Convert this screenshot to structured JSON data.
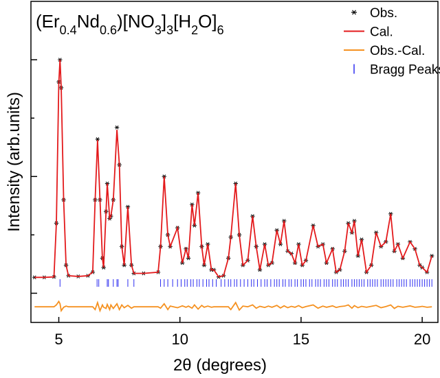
{
  "chart_data": {
    "type": "line",
    "title_segments": [
      {
        "text": "(Er"
      },
      {
        "text": "0.4",
        "sub": true
      },
      {
        "text": "Nd"
      },
      {
        "text": "0.6",
        "sub": true
      },
      {
        "text": ")[NO"
      },
      {
        "text": "3",
        "sub": true
      },
      {
        "text": "]"
      },
      {
        "text": "3",
        "sub": true
      },
      {
        "text": "[H"
      },
      {
        "text": "2",
        "sub": true
      },
      {
        "text": "O]"
      },
      {
        "text": "6",
        "sub": true
      }
    ],
    "x_label": "2θ (degrees)",
    "y_label": "Intensity (arb.units)",
    "xlim": [
      3.85,
      20.65
    ],
    "xticks": [
      5,
      10,
      15,
      20
    ],
    "ylim": [
      -0.125,
      1.25
    ],
    "yticks": [
      0,
      0.25,
      0.5,
      0.75,
      1
    ],
    "legend": "upper right",
    "x": [
      4.0,
      4.4,
      4.8,
      4.9,
      5.0,
      5.05,
      5.1,
      5.2,
      5.3,
      5.4,
      5.8,
      6.2,
      6.4,
      6.5,
      6.6,
      6.7,
      6.8,
      6.85,
      6.95,
      7.0,
      7.1,
      7.15,
      7.25,
      7.4,
      7.5,
      7.6,
      7.7,
      7.85,
      8.0,
      8.1,
      8.5,
      9.1,
      9.2,
      9.35,
      9.5,
      9.6,
      9.9,
      10.1,
      10.25,
      10.35,
      10.5,
      10.6,
      10.75,
      10.9,
      11.0,
      11.15,
      11.3,
      11.4,
      11.6,
      11.8,
      12.0,
      12.1,
      12.3,
      12.45,
      12.6,
      12.8,
      13.0,
      13.15,
      13.3,
      13.5,
      13.65,
      13.8,
      14.0,
      14.15,
      14.3,
      14.45,
      14.6,
      14.75,
      14.9,
      15.05,
      15.2,
      15.5,
      15.7,
      15.9,
      16.05,
      16.3,
      16.45,
      16.6,
      16.8,
      16.95,
      17.1,
      17.2,
      17.35,
      17.5,
      17.7,
      17.9,
      18.1,
      18.3,
      18.5,
      18.7,
      18.85,
      19.0,
      19.2,
      19.5,
      19.7,
      19.9,
      20.0,
      20.2,
      20.4
    ],
    "series": [
      {
        "name": "Obs.",
        "color": "#000000",
        "style": "marker",
        "values": [
          0.068,
          0.068,
          0.07,
          0.3,
          0.905,
          1.0,
          0.88,
          0.4,
          0.12,
          0.075,
          0.072,
          0.075,
          0.09,
          0.4,
          0.66,
          0.4,
          0.15,
          0.11,
          0.35,
          0.47,
          0.32,
          0.33,
          0.4,
          0.71,
          0.55,
          0.2,
          0.12,
          0.37,
          0.12,
          0.085,
          0.085,
          0.09,
          0.2,
          0.5,
          0.25,
          0.2,
          0.28,
          0.13,
          0.19,
          0.15,
          0.38,
          0.29,
          0.43,
          0.2,
          0.12,
          0.21,
          0.1,
          0.1,
          0.07,
          0.075,
          0.15,
          0.24,
          0.47,
          0.25,
          0.12,
          0.14,
          0.33,
          0.2,
          0.1,
          0.21,
          0.12,
          0.13,
          0.27,
          0.21,
          0.31,
          0.18,
          0.17,
          0.13,
          0.21,
          0.12,
          0.14,
          0.29,
          0.2,
          0.21,
          0.13,
          0.19,
          0.09,
          0.1,
          0.18,
          0.3,
          0.26,
          0.31,
          0.16,
          0.23,
          0.09,
          0.12,
          0.26,
          0.2,
          0.22,
          0.34,
          0.18,
          0.21,
          0.15,
          0.22,
          0.19,
          0.12,
          0.11,
          0.09,
          0.16
        ]
      },
      {
        "name": "Cal.",
        "color": "#e3191b",
        "style": "line",
        "values": [
          0.068,
          0.068,
          0.07,
          0.3,
          0.9,
          1.0,
          0.88,
          0.4,
          0.12,
          0.075,
          0.072,
          0.075,
          0.09,
          0.4,
          0.656,
          0.4,
          0.15,
          0.11,
          0.35,
          0.47,
          0.32,
          0.33,
          0.4,
          0.7,
          0.55,
          0.2,
          0.12,
          0.37,
          0.12,
          0.085,
          0.085,
          0.09,
          0.2,
          0.5,
          0.25,
          0.2,
          0.28,
          0.13,
          0.19,
          0.15,
          0.38,
          0.29,
          0.43,
          0.2,
          0.12,
          0.21,
          0.1,
          0.1,
          0.07,
          0.075,
          0.15,
          0.24,
          0.47,
          0.25,
          0.12,
          0.14,
          0.33,
          0.2,
          0.1,
          0.21,
          0.12,
          0.13,
          0.27,
          0.21,
          0.31,
          0.18,
          0.17,
          0.13,
          0.21,
          0.12,
          0.14,
          0.29,
          0.2,
          0.21,
          0.13,
          0.19,
          0.09,
          0.1,
          0.18,
          0.3,
          0.26,
          0.31,
          0.16,
          0.23,
          0.09,
          0.12,
          0.26,
          0.2,
          0.22,
          0.34,
          0.18,
          0.21,
          0.15,
          0.22,
          0.19,
          0.12,
          0.11,
          0.09,
          0.16
        ]
      },
      {
        "name": "Obs.-Cal.",
        "color": "#f59120",
        "style": "line",
        "values": [
          -0.058,
          -0.058,
          -0.058,
          -0.05,
          -0.035,
          -0.045,
          -0.075,
          -0.06,
          -0.055,
          -0.058,
          -0.058,
          -0.058,
          -0.058,
          -0.07,
          -0.04,
          -0.075,
          -0.05,
          -0.06,
          -0.065,
          -0.048,
          -0.07,
          -0.05,
          -0.065,
          -0.045,
          -0.07,
          -0.05,
          -0.062,
          -0.052,
          -0.064,
          -0.058,
          -0.058,
          -0.058,
          -0.064,
          -0.045,
          -0.07,
          -0.055,
          -0.062,
          -0.054,
          -0.06,
          -0.055,
          -0.064,
          -0.05,
          -0.068,
          -0.052,
          -0.06,
          -0.055,
          -0.06,
          -0.058,
          -0.058,
          -0.058,
          -0.058,
          -0.07,
          -0.04,
          -0.072,
          -0.055,
          -0.058,
          -0.05,
          -0.064,
          -0.056,
          -0.061,
          -0.055,
          -0.06,
          -0.052,
          -0.063,
          -0.054,
          -0.062,
          -0.056,
          -0.06,
          -0.053,
          -0.062,
          -0.057,
          -0.05,
          -0.064,
          -0.055,
          -0.06,
          -0.054,
          -0.061,
          -0.057,
          -0.055,
          -0.05,
          -0.064,
          -0.053,
          -0.062,
          -0.056,
          -0.06,
          -0.056,
          -0.052,
          -0.062,
          -0.057,
          -0.05,
          -0.065,
          -0.056,
          -0.06,
          -0.054,
          -0.06,
          -0.058,
          -0.056,
          -0.06,
          -0.058
        ]
      }
    ],
    "bragg": {
      "name": "Bragg Peaks",
      "color": "#2b2bf0",
      "positions": [
        5.05,
        6.58,
        6.65,
        7.0,
        7.05,
        7.25,
        7.4,
        7.45,
        7.85,
        8.1,
        9.2,
        9.35,
        9.5,
        9.7,
        9.9,
        10.05,
        10.2,
        10.3,
        10.45,
        10.55,
        10.7,
        10.8,
        10.95,
        11.1,
        11.2,
        11.35,
        11.5,
        11.7,
        11.85,
        12.0,
        12.1,
        12.25,
        12.35,
        12.5,
        12.65,
        12.8,
        12.95,
        13.05,
        13.2,
        13.35,
        13.5,
        13.6,
        13.75,
        13.9,
        14.0,
        14.1,
        14.25,
        14.35,
        14.5,
        14.6,
        14.75,
        14.85,
        15.0,
        15.1,
        15.2,
        15.35,
        15.45,
        15.6,
        15.7,
        15.8,
        15.95,
        16.05,
        16.15,
        16.3,
        16.4,
        16.5,
        16.65,
        16.75,
        16.85,
        16.95,
        17.1,
        17.2,
        17.3,
        17.4,
        17.5,
        17.6,
        17.75,
        17.85,
        17.95,
        18.05,
        18.15,
        18.3,
        18.4,
        18.5,
        18.6,
        18.7,
        18.8,
        18.95,
        19.05,
        19.15,
        19.25,
        19.35,
        19.5,
        19.6,
        19.7,
        19.8,
        19.9,
        20.0,
        20.1,
        20.2,
        20.3,
        20.4
      ]
    }
  }
}
